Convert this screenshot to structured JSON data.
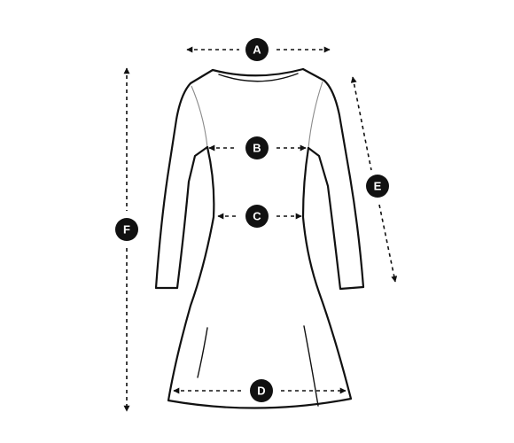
{
  "markers": {
    "a": "A",
    "b": "B",
    "c": "C",
    "d": "D",
    "e": "E",
    "f": "F"
  }
}
